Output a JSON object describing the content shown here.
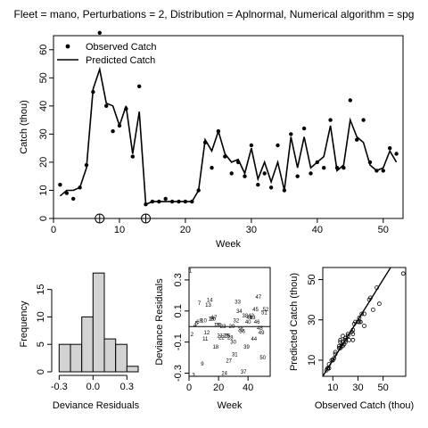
{
  "title": "Fleet = mano, Perturbations = 2, Distribution = Aplnormal, Numerical algorithm = spg",
  "chart_data": [
    {
      "type": "line",
      "xlabel": "Week",
      "ylabel": "Catch (thou)",
      "xlim": [
        0,
        53
      ],
      "ylim": [
        0,
        65
      ],
      "xticks": [
        "0",
        "10",
        "20",
        "30",
        "40",
        "50"
      ],
      "yticks": [
        "0",
        "10",
        "20",
        "30",
        "40",
        "50",
        "60"
      ],
      "legend": {
        "position": "top-left",
        "observed_label": "Observed Catch",
        "predicted_label": "Predicted Catch"
      },
      "perturbation_weeks": [
        7,
        14
      ],
      "observed": [
        [
          1,
          12
        ],
        [
          2,
          9
        ],
        [
          3,
          7
        ],
        [
          4,
          11
        ],
        [
          5,
          19
        ],
        [
          6,
          45
        ],
        [
          7,
          66
        ],
        [
          8,
          40
        ],
        [
          9,
          31
        ],
        [
          10,
          33
        ],
        [
          11,
          39
        ],
        [
          12,
          22
        ],
        [
          13,
          47
        ],
        [
          14,
          5
        ],
        [
          15,
          6
        ],
        [
          16,
          6
        ],
        [
          17,
          7
        ],
        [
          18,
          6
        ],
        [
          19,
          6
        ],
        [
          20,
          6
        ],
        [
          21,
          6
        ],
        [
          22,
          10
        ],
        [
          23,
          27
        ],
        [
          24,
          18
        ],
        [
          25,
          31
        ],
        [
          26,
          22
        ],
        [
          27,
          16
        ],
        [
          28,
          20
        ],
        [
          29,
          15
        ],
        [
          30,
          26
        ],
        [
          31,
          12
        ],
        [
          32,
          16
        ],
        [
          33,
          11
        ],
        [
          34,
          26
        ],
        [
          35,
          10
        ],
        [
          36,
          30
        ],
        [
          37,
          15
        ],
        [
          38,
          32
        ],
        [
          39,
          16
        ],
        [
          40,
          20
        ],
        [
          41,
          18
        ],
        [
          42,
          35
        ],
        [
          43,
          18
        ],
        [
          44,
          18
        ],
        [
          45,
          42
        ],
        [
          46,
          28
        ],
        [
          47,
          35
        ],
        [
          48,
          20
        ],
        [
          49,
          17
        ],
        [
          50,
          17
        ],
        [
          51,
          25
        ],
        [
          52,
          23
        ]
      ],
      "predicted": [
        [
          1,
          8
        ],
        [
          2,
          10
        ],
        [
          3,
          10
        ],
        [
          4,
          11
        ],
        [
          5,
          18
        ],
        [
          6,
          46
        ],
        [
          7,
          53
        ],
        [
          8,
          41
        ],
        [
          9,
          40
        ],
        [
          10,
          33
        ],
        [
          11,
          40
        ],
        [
          12,
          23
        ],
        [
          13,
          38
        ],
        [
          14,
          5
        ],
        [
          15,
          6
        ],
        [
          16,
          6
        ],
        [
          17,
          6
        ],
        [
          18,
          6
        ],
        [
          19,
          6
        ],
        [
          20,
          6
        ],
        [
          21,
          6
        ],
        [
          22,
          10
        ],
        [
          23,
          28
        ],
        [
          24,
          24
        ],
        [
          25,
          31
        ],
        [
          26,
          23
        ],
        [
          27,
          20
        ],
        [
          28,
          21
        ],
        [
          29,
          16
        ],
        [
          30,
          25
        ],
        [
          31,
          14
        ],
        [
          32,
          20
        ],
        [
          33,
          13
        ],
        [
          34,
          20
        ],
        [
          35,
          10
        ],
        [
          36,
          29
        ],
        [
          37,
          18
        ],
        [
          38,
          29
        ],
        [
          39,
          18
        ],
        [
          40,
          20
        ],
        [
          41,
          22
        ],
        [
          42,
          33
        ],
        [
          43,
          17
        ],
        [
          44,
          19
        ],
        [
          45,
          35
        ],
        [
          46,
          29
        ],
        [
          47,
          27
        ],
        [
          48,
          19
        ],
        [
          49,
          17
        ],
        [
          50,
          18
        ],
        [
          51,
          24
        ],
        [
          52,
          20
        ]
      ]
    },
    {
      "type": "bar",
      "xlabel": "Deviance Residuals",
      "ylabel": "Frequency",
      "xticks": [
        "-0.3",
        "0.0",
        "0.3"
      ],
      "yticks": [
        "0",
        "5",
        "10",
        "15"
      ],
      "xlim": [
        -0.35,
        0.4
      ],
      "ylim": [
        0,
        19
      ],
      "bins": [
        {
          "from": -0.3,
          "to": -0.2,
          "count": 5
        },
        {
          "from": -0.2,
          "to": -0.1,
          "count": 5
        },
        {
          "from": -0.1,
          "to": 0.0,
          "count": 10
        },
        {
          "from": 0.0,
          "to": 0.1,
          "count": 18
        },
        {
          "from": 0.1,
          "to": 0.2,
          "count": 6
        },
        {
          "from": 0.2,
          "to": 0.3,
          "count": 5
        },
        {
          "from": 0.3,
          "to": 0.4,
          "count": 1
        }
      ]
    },
    {
      "type": "scatter",
      "xlabel": "Week",
      "ylabel": "Deviance Residuals",
      "xticks": [
        "0",
        "20",
        "40"
      ],
      "yticks": [
        "-0.3",
        "-0.1",
        "0.1",
        "0.3"
      ],
      "xlim": [
        0,
        55
      ],
      "ylim": [
        -0.32,
        0.38
      ],
      "zero_line": 0.0,
      "points": [
        [
          1,
          0.36
        ],
        [
          2,
          -0.05
        ],
        [
          3,
          -0.31
        ],
        [
          4,
          0.01
        ],
        [
          5,
          0.02
        ],
        [
          6,
          0.03
        ],
        [
          7,
          0.15
        ],
        [
          8,
          0.04
        ],
        [
          9,
          -0.24
        ],
        [
          10,
          0.04
        ],
        [
          11,
          -0.08
        ],
        [
          12,
          -0.04
        ],
        [
          13,
          0.14
        ],
        [
          14,
          0.17
        ],
        [
          15,
          0.05
        ],
        [
          16,
          0.05
        ],
        [
          17,
          0.06
        ],
        [
          18,
          -0.13
        ],
        [
          19,
          0.01
        ],
        [
          20,
          0.01
        ],
        [
          21,
          -0.06
        ],
        [
          22,
          -0.07
        ],
        [
          23,
          0.0
        ],
        [
          24,
          -0.3
        ],
        [
          25,
          -0.06
        ],
        [
          26,
          -0.06
        ],
        [
          27,
          -0.22
        ],
        [
          28,
          -0.07
        ],
        [
          29,
          0.0
        ],
        [
          30,
          -0.1
        ],
        [
          31,
          -0.18
        ],
        [
          32,
          0.04
        ],
        [
          33,
          0.16
        ],
        [
          34,
          0.1
        ],
        [
          35,
          -0.02
        ],
        [
          36,
          -0.03
        ],
        [
          37,
          -0.29
        ],
        [
          38,
          0.07
        ],
        [
          39,
          -0.13
        ],
        [
          40,
          0.03
        ],
        [
          41,
          0.06
        ],
        [
          42,
          0.07
        ],
        [
          43,
          0.06
        ],
        [
          44,
          -0.08
        ],
        [
          45,
          0.11
        ],
        [
          46,
          0.03
        ],
        [
          47,
          0.19
        ],
        [
          48,
          -0.01
        ],
        [
          49,
          -0.04
        ],
        [
          50,
          -0.2
        ],
        [
          51,
          0.09
        ],
        [
          52,
          0.11
        ]
      ]
    },
    {
      "type": "scatter",
      "xlabel": "Observed Catch (thou)",
      "ylabel": "Predicted Catch (thou)",
      "xticks": [
        "10",
        "30",
        "50"
      ],
      "yticks": [
        "10",
        "30",
        "50"
      ],
      "xlim": [
        2,
        68
      ],
      "ylim": [
        2,
        56
      ],
      "reference_line": "y = x",
      "points": [
        [
          5,
          5
        ],
        [
          6,
          6
        ],
        [
          6,
          6
        ],
        [
          6,
          6
        ],
        [
          7,
          6
        ],
        [
          6,
          6
        ],
        [
          7,
          8
        ],
        [
          9,
          10
        ],
        [
          10,
          10
        ],
        [
          10,
          10
        ],
        [
          11,
          11
        ],
        [
          12,
          13
        ],
        [
          12,
          14
        ],
        [
          15,
          16
        ],
        [
          15,
          17
        ],
        [
          16,
          16
        ],
        [
          16,
          19
        ],
        [
          16,
          20
        ],
        [
          17,
          17
        ],
        [
          18,
          17
        ],
        [
          18,
          19
        ],
        [
          18,
          22
        ],
        [
          19,
          18
        ],
        [
          20,
          21
        ],
        [
          20,
          20
        ],
        [
          20,
          19
        ],
        [
          20,
          21
        ],
        [
          22,
          22
        ],
        [
          22,
          23
        ],
        [
          23,
          20
        ],
        [
          25,
          24
        ],
        [
          26,
          23
        ],
        [
          26,
          25
        ],
        [
          26,
          20
        ],
        [
          27,
          28
        ],
        [
          28,
          29
        ],
        [
          30,
          29
        ],
        [
          31,
          29
        ],
        [
          31,
          31
        ],
        [
          32,
          29
        ],
        [
          33,
          33
        ],
        [
          35,
          33
        ],
        [
          35,
          27
        ],
        [
          39,
          40
        ],
        [
          40,
          41
        ],
        [
          42,
          35
        ],
        [
          45,
          46
        ],
        [
          47,
          38
        ],
        [
          66,
          53
        ]
      ]
    }
  ]
}
